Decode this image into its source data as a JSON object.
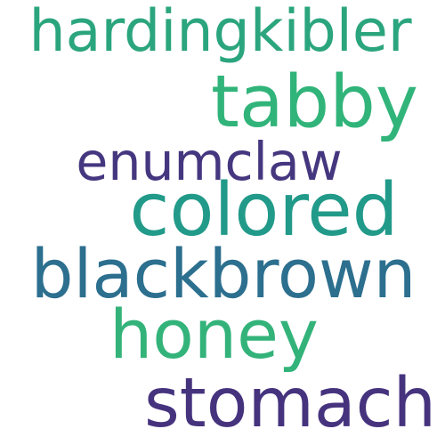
{
  "words": [
    {
      "text": "hardingkibler",
      "color": "#2ba57d"
    },
    {
      "text": "tabby",
      "color": "#31b47a"
    },
    {
      "text": "enumclaw",
      "color": "#45377f"
    },
    {
      "text": "colored",
      "color": "#229a8a"
    },
    {
      "text": "blackbrown",
      "color": "#2c6f8e"
    },
    {
      "text": "honey",
      "color": "#33b37a"
    },
    {
      "text": "stomach",
      "color": "#46337e"
    }
  ]
}
